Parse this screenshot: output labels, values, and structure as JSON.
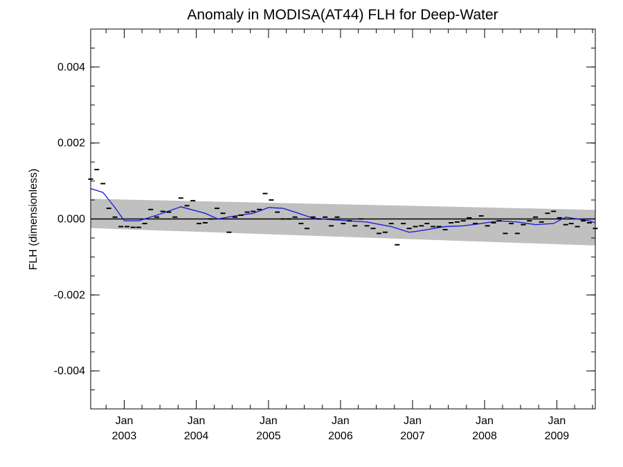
{
  "chart_data": {
    "type": "line",
    "title": "Anomaly in MODISA(AT44) FLH for Deep-Water",
    "xlabel": "",
    "ylabel": "FLH (dimensionless)",
    "xlim": [
      "2002-07-15",
      "2009-07-15"
    ],
    "ylim": [
      -0.005,
      0.005
    ],
    "grid": false,
    "yticks": [
      {
        "value": 0.004,
        "label": "0.004"
      },
      {
        "value": 0.002,
        "label": "0.002"
      },
      {
        "value": 0.0,
        "label": "0.000"
      },
      {
        "value": -0.002,
        "label": "-0.002"
      },
      {
        "value": -0.004,
        "label": "-0.004"
      }
    ],
    "xticks": [
      {
        "date": "2003-01-01",
        "month": "Jan",
        "year": "2003"
      },
      {
        "date": "2004-01-01",
        "month": "Jan",
        "year": "2004"
      },
      {
        "date": "2005-01-01",
        "month": "Jan",
        "year": "2005"
      },
      {
        "date": "2006-01-01",
        "month": "Jan",
        "year": "2006"
      },
      {
        "date": "2007-01-01",
        "month": "Jan",
        "year": "2007"
      },
      {
        "date": "2008-01-01",
        "month": "Jan",
        "year": "2008"
      },
      {
        "date": "2009-01-01",
        "month": "Jan",
        "year": "2009"
      }
    ],
    "band": {
      "color": "#c0c0c0",
      "x": [
        "2002-07-15",
        "2009-07-15"
      ],
      "upper": [
        0.00053,
        0.00024
      ],
      "lower": [
        -0.00024,
        -0.0007
      ]
    },
    "zero_line": {
      "value": 0.0,
      "color": "#000000"
    },
    "series": [
      {
        "kind": "markers",
        "color": "#000000",
        "x": [
          "2002-07-15",
          "2002-08-15",
          "2002-09-15",
          "2002-10-15",
          "2002-11-15",
          "2002-12-15",
          "2003-01-15",
          "2003-02-15",
          "2003-03-15",
          "2003-04-15",
          "2003-05-15",
          "2003-06-15",
          "2003-07-15",
          "2003-08-15",
          "2003-09-15",
          "2003-10-15",
          "2003-11-15",
          "2003-12-15",
          "2004-01-15",
          "2004-02-15",
          "2004-03-15",
          "2004-04-15",
          "2004-05-15",
          "2004-06-15",
          "2004-07-15",
          "2004-08-15",
          "2004-09-15",
          "2004-10-15",
          "2004-11-15",
          "2004-12-15",
          "2005-01-15",
          "2005-02-15",
          "2005-03-15",
          "2005-04-15",
          "2005-05-15",
          "2005-06-15",
          "2005-07-15",
          "2005-08-15",
          "2005-09-15",
          "2005-10-15",
          "2005-11-15",
          "2005-12-15",
          "2006-01-15",
          "2006-02-15",
          "2006-03-15",
          "2006-04-15",
          "2006-05-15",
          "2006-06-15",
          "2006-07-15",
          "2006-08-15",
          "2006-09-15",
          "2006-10-15",
          "2006-11-15",
          "2006-12-15",
          "2007-01-15",
          "2007-02-15",
          "2007-03-15",
          "2007-04-15",
          "2007-05-15",
          "2007-06-15",
          "2007-07-15",
          "2007-08-15",
          "2007-09-15",
          "2007-10-15",
          "2007-11-15",
          "2007-12-15",
          "2008-01-15",
          "2008-02-15",
          "2008-03-15",
          "2008-04-15",
          "2008-05-15",
          "2008-06-15",
          "2008-07-15",
          "2008-08-15",
          "2008-09-15",
          "2008-10-15",
          "2008-11-15",
          "2008-12-15",
          "2009-01-15",
          "2009-02-15",
          "2009-03-15",
          "2009-04-15",
          "2009-05-15",
          "2009-06-15",
          "2009-07-15"
        ],
        "y": [
          0.00105,
          0.0013,
          0.00093,
          0.00028,
          5e-05,
          -0.0002,
          -0.0002,
          -0.00022,
          -0.00022,
          -0.00012,
          0.00025,
          5e-05,
          0.0002,
          0.00018,
          5e-05,
          0.00055,
          0.00035,
          0.00048,
          -0.00012,
          -0.0001,
          0.0,
          0.00028,
          0.00015,
          -0.00035,
          5e-05,
          0.0001,
          0.00018,
          0.0002,
          0.00025,
          0.00067,
          0.0005,
          0.00018,
          0.0,
          0.0,
          5e-05,
          -0.00012,
          -0.00025,
          5e-05,
          0.0,
          5e-05,
          -0.00018,
          5e-05,
          -0.00012,
          -5e-05,
          -0.00018,
          0.0,
          -0.00018,
          -0.00025,
          -0.00038,
          -0.00035,
          -0.00012,
          -0.00068,
          -0.00012,
          -0.00025,
          -0.0002,
          -0.00018,
          -0.00012,
          -0.0002,
          -0.0002,
          -0.00028,
          -0.0001,
          -8e-05,
          -5e-05,
          3e-05,
          -0.00012,
          8e-05,
          -0.00018,
          -0.0001,
          -5e-05,
          -0.00038,
          -0.00012,
          -0.00038,
          -0.00015,
          -5e-05,
          5e-05,
          -8e-05,
          0.00015,
          0.0002,
          3e-05,
          -0.00015,
          -0.00012,
          -0.0002,
          -5e-05,
          -0.0001,
          -0.00025
        ]
      },
      {
        "kind": "line",
        "color": "#1f1fd8",
        "x": [
          "2002-07-15",
          "2002-09-15",
          "2002-11-15",
          "2003-01-01",
          "2003-03-15",
          "2003-06-15",
          "2003-10-15",
          "2004-02-15",
          "2004-04-20",
          "2004-07-15",
          "2004-10-15",
          "2005-01-01",
          "2005-03-15",
          "2005-05-15",
          "2005-08-15",
          "2005-11-15",
          "2006-02-15",
          "2006-05-15",
          "2006-09-15",
          "2006-12-15",
          "2007-01-15",
          "2007-03-15",
          "2007-06-15",
          "2007-09-15",
          "2007-12-15",
          "2008-03-15",
          "2008-06-15",
          "2008-09-15",
          "2008-12-15",
          "2009-02-15",
          "2009-04-15",
          "2009-06-15",
          "2009-07-15"
        ],
        "y": [
          0.0008,
          0.0007,
          0.0003,
          -5e-05,
          -5e-05,
          0.0001,
          0.00032,
          0.00015,
          0.0,
          8e-05,
          0.00015,
          0.0003,
          0.00028,
          0.00018,
          2e-05,
          -2e-05,
          -5e-05,
          -8e-05,
          -0.0002,
          -0.00035,
          -0.00033,
          -0.00028,
          -0.0002,
          -0.00018,
          -0.00012,
          -5e-05,
          -8e-05,
          -0.00015,
          -0.00012,
          5e-05,
          0.0,
          -5e-05,
          -0.0001
        ]
      }
    ]
  }
}
